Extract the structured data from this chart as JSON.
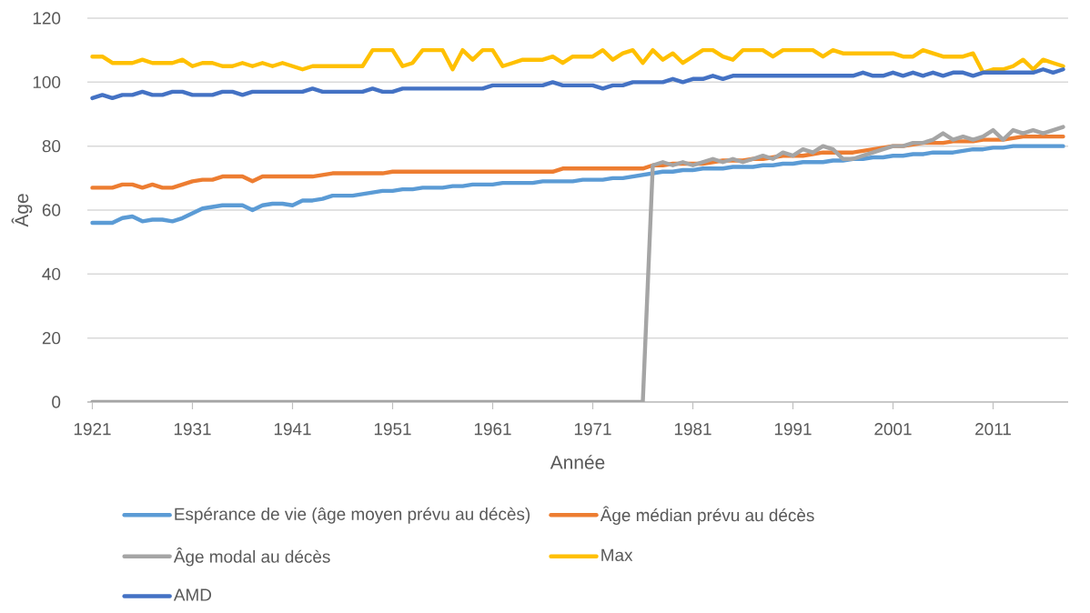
{
  "chart_data": {
    "type": "line",
    "xlabel": "Année",
    "ylabel": "Âge",
    "x": [
      1921,
      1922,
      1923,
      1924,
      1925,
      1926,
      1927,
      1928,
      1929,
      1930,
      1931,
      1932,
      1933,
      1934,
      1935,
      1936,
      1937,
      1938,
      1939,
      1940,
      1941,
      1942,
      1943,
      1944,
      1945,
      1946,
      1947,
      1948,
      1949,
      1950,
      1951,
      1952,
      1953,
      1954,
      1955,
      1956,
      1957,
      1958,
      1959,
      1960,
      1961,
      1962,
      1963,
      1964,
      1965,
      1966,
      1967,
      1968,
      1969,
      1970,
      1971,
      1972,
      1973,
      1974,
      1975,
      1976,
      1977,
      1978,
      1979,
      1980,
      1981,
      1982,
      1983,
      1984,
      1985,
      1986,
      1987,
      1988,
      1989,
      1990,
      1991,
      1992,
      1993,
      1994,
      1995,
      1996,
      1997,
      1998,
      1999,
      2000,
      2001,
      2002,
      2003,
      2004,
      2005,
      2006,
      2007,
      2008,
      2009,
      2010,
      2011,
      2012,
      2013,
      2014,
      2015,
      2016,
      2017,
      2018
    ],
    "xlim": [
      1920.5,
      2018.5
    ],
    "xticks": [
      1921,
      1931,
      1941,
      1951,
      1961,
      1971,
      1981,
      1991,
      2001,
      2011
    ],
    "ylim": [
      0,
      120
    ],
    "yticks": [
      0,
      20,
      40,
      60,
      80,
      100,
      120
    ],
    "grid": "y",
    "legend": "bottom",
    "marker": "none",
    "line_style": "solid",
    "series": [
      {
        "name": "Espérance de vie (âge moyen prévu au décès)",
        "color": "#5b9bd5",
        "values": [
          56,
          56,
          56,
          57.5,
          58,
          56.5,
          57,
          57,
          56.5,
          57.5,
          59,
          60.5,
          61,
          61.5,
          61.5,
          61.5,
          60,
          61.5,
          62,
          62,
          61.5,
          63,
          63,
          63.5,
          64.5,
          64.5,
          64.5,
          65,
          65.5,
          66,
          66,
          66.5,
          66.5,
          67,
          67,
          67,
          67.5,
          67.5,
          68,
          68,
          68,
          68.5,
          68.5,
          68.5,
          68.5,
          69,
          69,
          69,
          69,
          69.5,
          69.5,
          69.5,
          70,
          70,
          70.5,
          71,
          71.5,
          72,
          72,
          72.5,
          72.5,
          73,
          73,
          73,
          73.5,
          73.5,
          73.5,
          74,
          74,
          74.5,
          74.5,
          75,
          75,
          75,
          75.5,
          75.5,
          76,
          76,
          76.5,
          76.5,
          77,
          77,
          77.5,
          77.5,
          78,
          78,
          78,
          78.5,
          79,
          79,
          79.5,
          79.5,
          80,
          80,
          80,
          80,
          80,
          80
        ]
      },
      {
        "name": "Âge médian prévu au décès",
        "color": "#ed7d31",
        "values": [
          67,
          67,
          67,
          68,
          68,
          67,
          68,
          67,
          67,
          68,
          69,
          69.5,
          69.5,
          70.5,
          70.5,
          70.5,
          69,
          70.5,
          70.5,
          70.5,
          70.5,
          70.5,
          70.5,
          71,
          71.5,
          71.5,
          71.5,
          71.5,
          71.5,
          71.5,
          72,
          72,
          72,
          72,
          72,
          72,
          72,
          72,
          72,
          72,
          72,
          72,
          72,
          72,
          72,
          72,
          72,
          73,
          73,
          73,
          73,
          73,
          73,
          73,
          73,
          73,
          74,
          74,
          74.5,
          74.5,
          74.5,
          74.5,
          75,
          75.5,
          75.5,
          75.5,
          76,
          76,
          76.5,
          77,
          77,
          77,
          77.5,
          78,
          78,
          78,
          78,
          78.5,
          79,
          79.5,
          80,
          80,
          80.5,
          81,
          81,
          81,
          81.5,
          81.5,
          81.5,
          82,
          82,
          82,
          82.5,
          83,
          83,
          83,
          83,
          83
        ]
      },
      {
        "name": "Âge modal au décès",
        "color": "#a5a5a5",
        "values": [
          0,
          0,
          0,
          0,
          0,
          0,
          0,
          0,
          0,
          0,
          0,
          0,
          0,
          0,
          0,
          0,
          0,
          0,
          0,
          0,
          0,
          0,
          0,
          0,
          0,
          0,
          0,
          0,
          0,
          0,
          0,
          0,
          0,
          0,
          0,
          0,
          0,
          0,
          0,
          0,
          0,
          0,
          0,
          0,
          0,
          0,
          0,
          0,
          0,
          0,
          0,
          0,
          0,
          0,
          0,
          0,
          74,
          75,
          74,
          75,
          74,
          75,
          76,
          75,
          76,
          75,
          76,
          77,
          76,
          78,
          77,
          79,
          78,
          80,
          79,
          76,
          76,
          77,
          78,
          79,
          80,
          80,
          81,
          81,
          82,
          84,
          82,
          83,
          82,
          83,
          85,
          82,
          85,
          84,
          85,
          84,
          85,
          86
        ]
      },
      {
        "name": "Max",
        "color": "#ffc000",
        "values": [
          108,
          108,
          106,
          106,
          106,
          107,
          106,
          106,
          106,
          107,
          105,
          106,
          106,
          105,
          105,
          106,
          105,
          106,
          105,
          106,
          105,
          104,
          105,
          105,
          105,
          105,
          105,
          105,
          110,
          110,
          110,
          105,
          106,
          110,
          110,
          110,
          104,
          110,
          107,
          110,
          110,
          105,
          106,
          107,
          107,
          107,
          108,
          106,
          108,
          108,
          108,
          110,
          107,
          109,
          110,
          106,
          110,
          107,
          109,
          106,
          108,
          110,
          110,
          108,
          107,
          110,
          110,
          110,
          108,
          110,
          110,
          110,
          110,
          108,
          110,
          109,
          109,
          109,
          109,
          109,
          109,
          108,
          108,
          110,
          109,
          108,
          108,
          108,
          109,
          103,
          104,
          104,
          105,
          107,
          104,
          107,
          106,
          105
        ]
      },
      {
        "name": "AMD",
        "color": "#4472c4",
        "values": [
          95,
          96,
          95,
          96,
          96,
          97,
          96,
          96,
          97,
          97,
          96,
          96,
          96,
          97,
          97,
          96,
          97,
          97,
          97,
          97,
          97,
          97,
          98,
          97,
          97,
          97,
          97,
          97,
          98,
          97,
          97,
          98,
          98,
          98,
          98,
          98,
          98,
          98,
          98,
          98,
          99,
          99,
          99,
          99,
          99,
          99,
          100,
          99,
          99,
          99,
          99,
          98,
          99,
          99,
          100,
          100,
          100,
          100,
          101,
          100,
          101,
          101,
          102,
          101,
          102,
          102,
          102,
          102,
          102,
          102,
          102,
          102,
          102,
          102,
          102,
          102,
          102,
          103,
          102,
          102,
          103,
          102,
          103,
          102,
          103,
          102,
          103,
          103,
          102,
          103,
          103,
          103,
          103,
          103,
          103,
          104,
          103,
          104
        ]
      }
    ]
  }
}
